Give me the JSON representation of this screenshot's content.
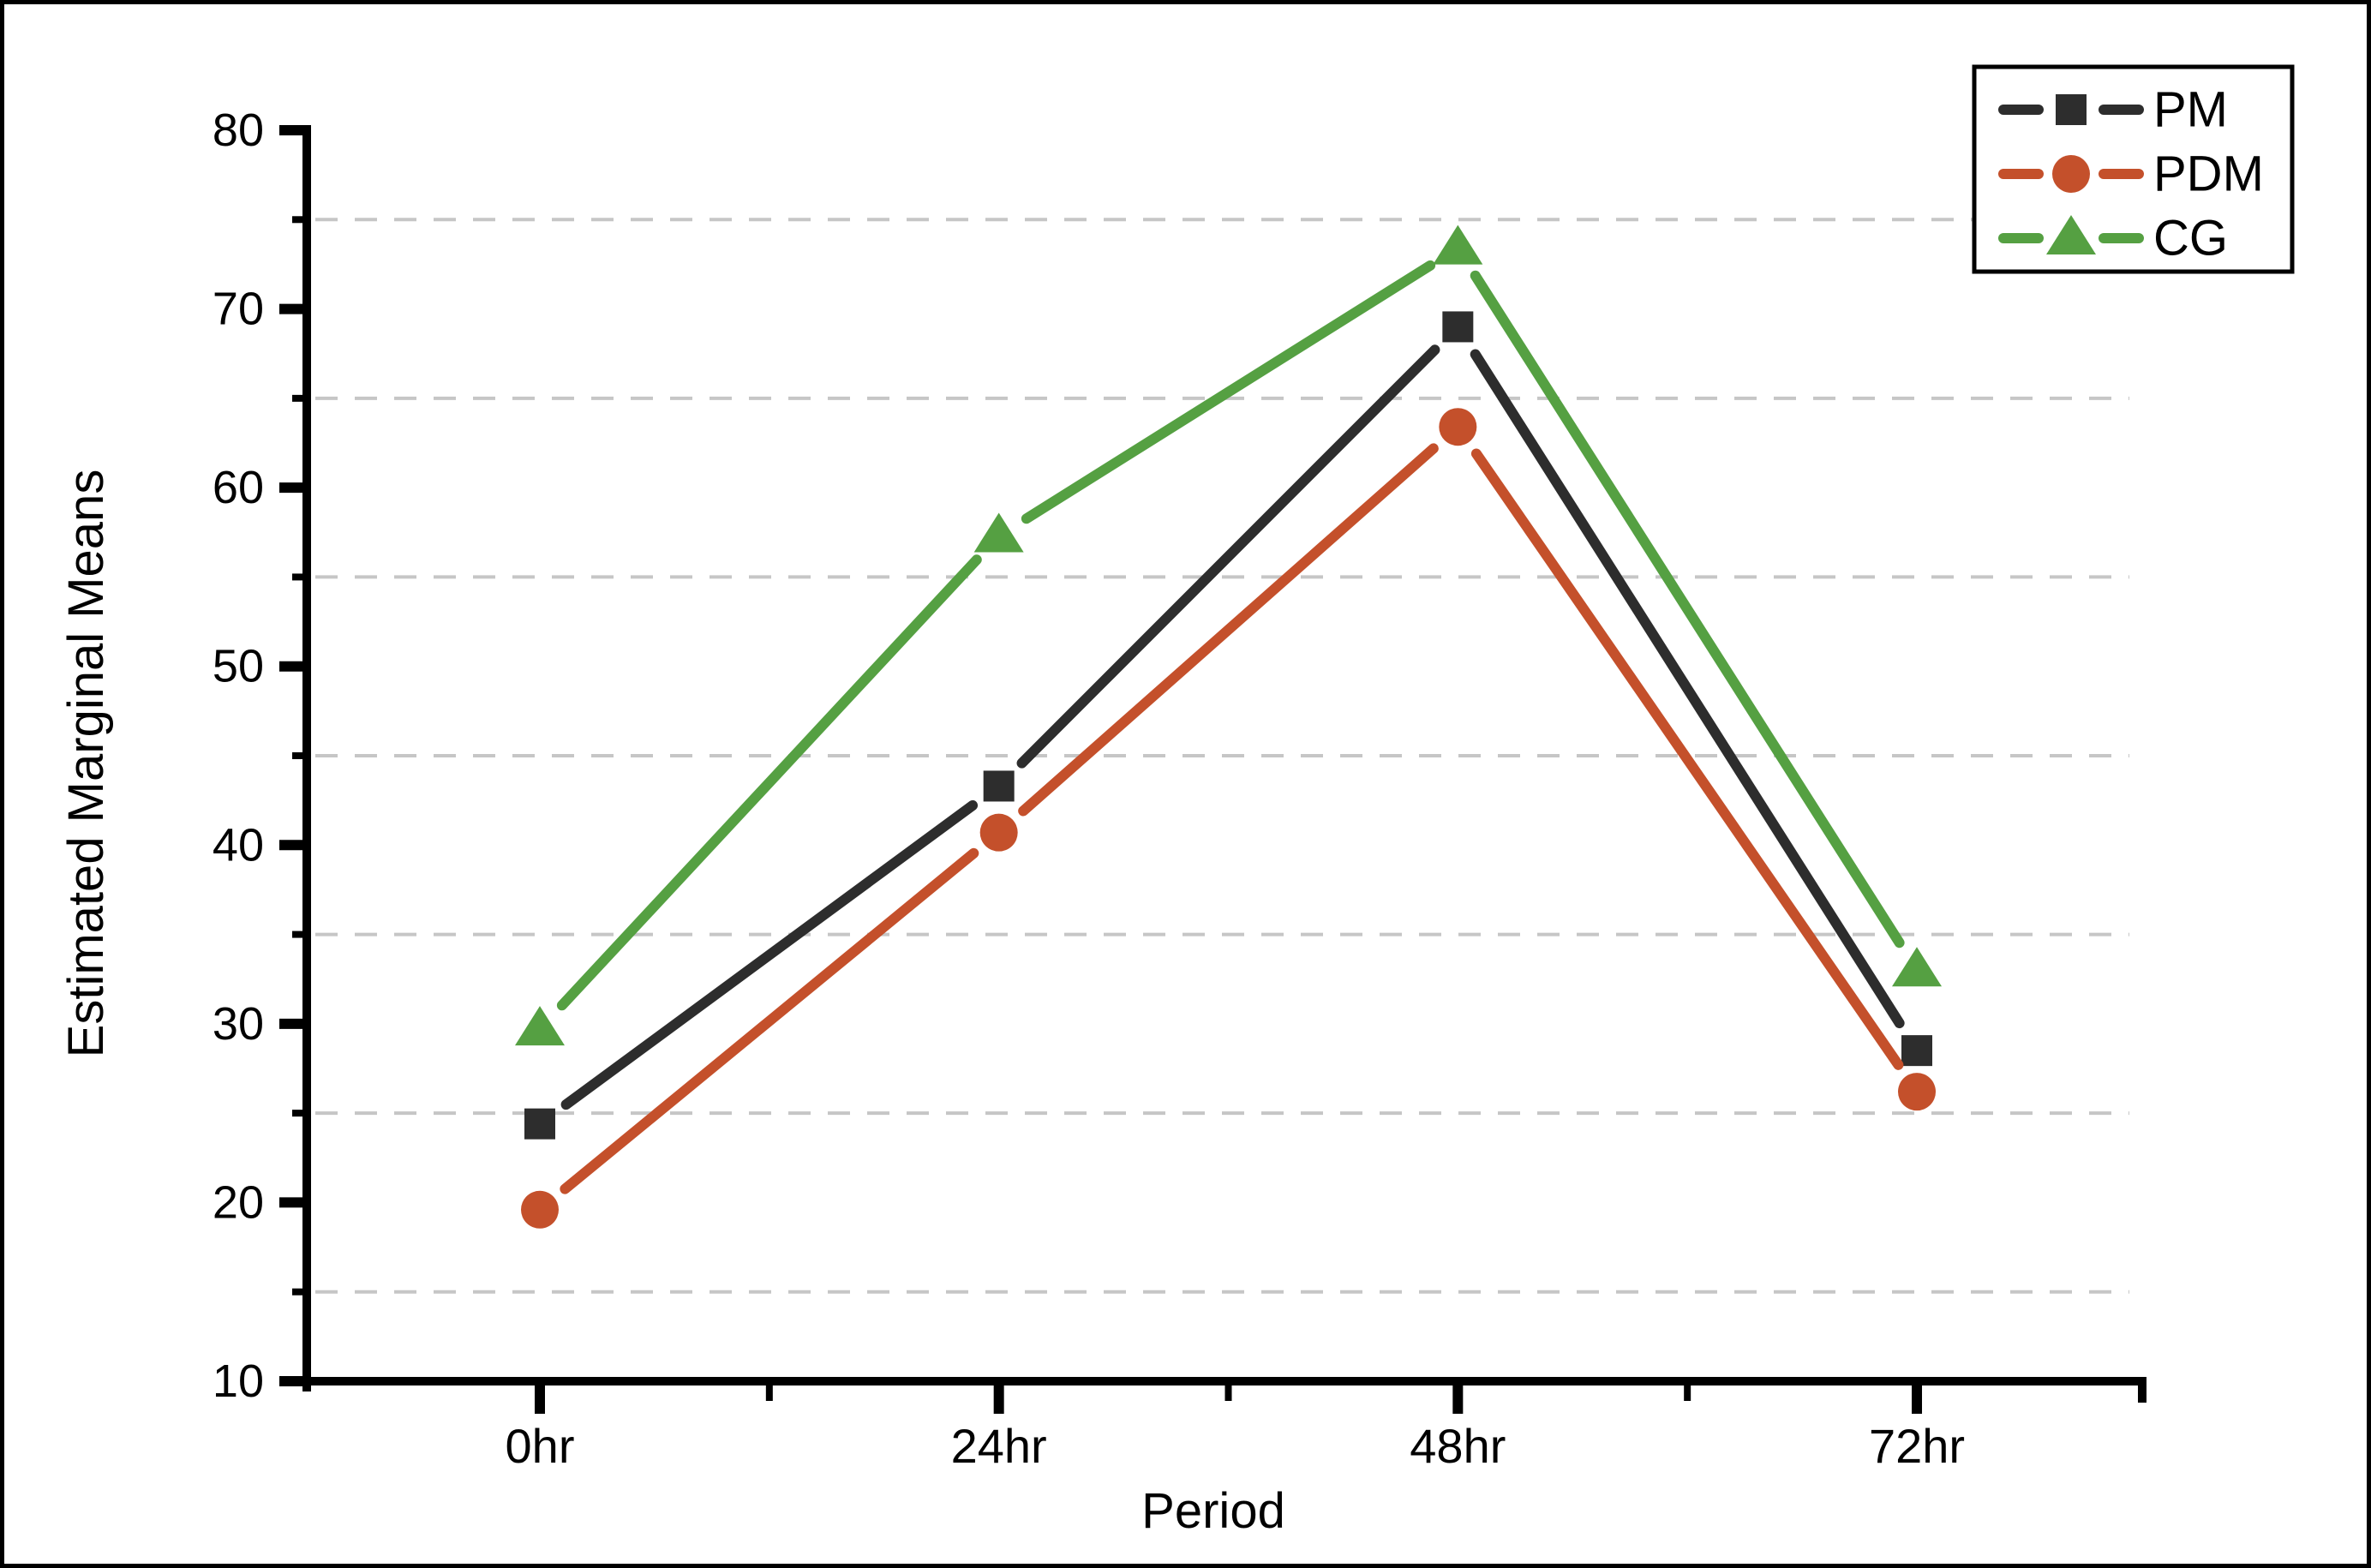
{
  "chart_data": {
    "type": "line",
    "title": "",
    "xlabel": "Period",
    "ylabel": "Estimated Marginal Means",
    "categories": [
      "0hr",
      "24hr",
      "48hr",
      "72hr"
    ],
    "series": [
      {
        "name": "PM",
        "marker": "square",
        "color": "#2d2d2d",
        "values": [
          24.4,
          43.3,
          69.0,
          28.5
        ]
      },
      {
        "name": "PDM",
        "marker": "circle",
        "color": "#c4502b",
        "values": [
          19.6,
          40.7,
          63.4,
          26.2
        ]
      },
      {
        "name": "CG",
        "marker": "triangle",
        "color": "#55a042",
        "values": [
          29.7,
          57.3,
          73.4,
          33.0
        ]
      }
    ],
    "ylim": [
      10,
      80
    ],
    "y_major_ticks": [
      "10",
      "20",
      "30",
      "40",
      "50",
      "60",
      "70",
      "80"
    ],
    "y_minor_gridlines": [
      15,
      25,
      35,
      45,
      55,
      65,
      75
    ],
    "grid": "horizontal-dashed-at-minor-ticks",
    "gridline_color": "#c6c6c6",
    "axis_color": "#000000",
    "background_color": "#ffffff",
    "legend": {
      "position": "top-right",
      "labels": [
        "PM",
        "PDM",
        "CG"
      ]
    }
  }
}
